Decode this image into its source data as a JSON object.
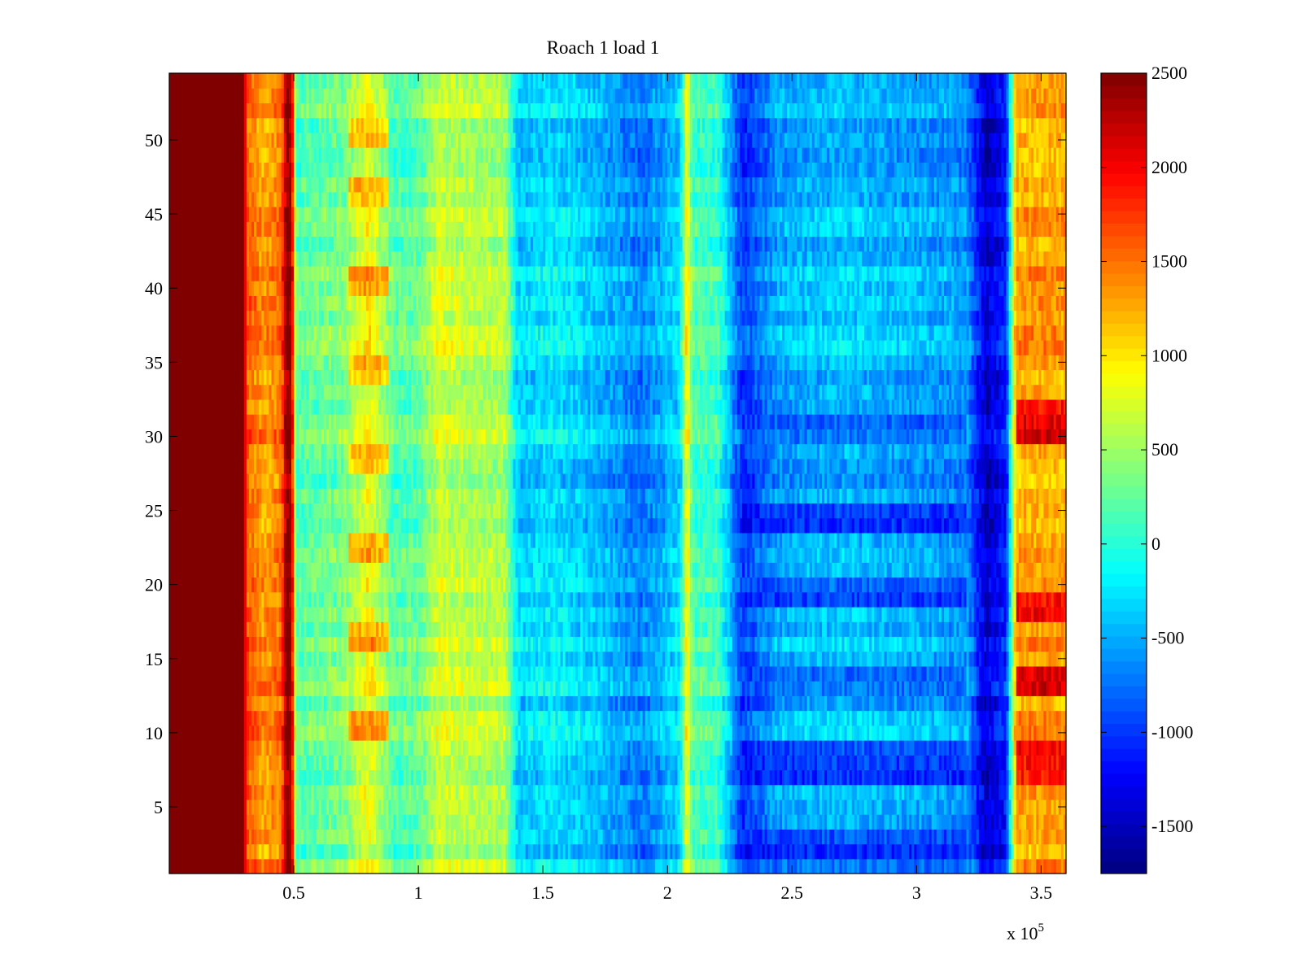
{
  "chart_data": {
    "type": "heatmap",
    "title": "Roach 1 load 1",
    "xlabel": "",
    "ylabel": "",
    "x_exponent_label": "x 10",
    "x_exponent_power": "5",
    "xlim": [
      0,
      3.6
    ],
    "ylim": [
      0.5,
      54.5
    ],
    "rows": 54,
    "x_ticks": [
      {
        "value": 0.5,
        "label": "0.5"
      },
      {
        "value": 1,
        "label": "1"
      },
      {
        "value": 1.5,
        "label": "1.5"
      },
      {
        "value": 2,
        "label": "2"
      },
      {
        "value": 2.5,
        "label": "2.5"
      },
      {
        "value": 3,
        "label": "3"
      },
      {
        "value": 3.5,
        "label": "3.5"
      }
    ],
    "y_ticks": [
      {
        "value": 5,
        "label": "5"
      },
      {
        "value": 10,
        "label": "10"
      },
      {
        "value": 15,
        "label": "15"
      },
      {
        "value": 20,
        "label": "20"
      },
      {
        "value": 25,
        "label": "25"
      },
      {
        "value": 30,
        "label": "30"
      },
      {
        "value": 35,
        "label": "35"
      },
      {
        "value": 40,
        "label": "40"
      },
      {
        "value": 45,
        "label": "45"
      },
      {
        "value": 50,
        "label": "50"
      }
    ],
    "colorbar": {
      "colormap": "jet",
      "range": [
        -1750,
        2500
      ],
      "ticks": [
        {
          "value": 2500,
          "label": "2500"
        },
        {
          "value": 2000,
          "label": "2000"
        },
        {
          "value": 1500,
          "label": "1500"
        },
        {
          "value": 1000,
          "label": "1000"
        },
        {
          "value": 500,
          "label": "500"
        },
        {
          "value": 0,
          "label": "0"
        },
        {
          "value": -500,
          "label": "-500"
        },
        {
          "value": -1000,
          "label": "-1000"
        },
        {
          "value": -1500,
          "label": "-1500"
        }
      ]
    },
    "column_profile": [
      {
        "x": 0.0,
        "value": 2500
      },
      {
        "x": 0.3,
        "value": 2500
      },
      {
        "x": 0.31,
        "value": 1600
      },
      {
        "x": 0.38,
        "value": 1300
      },
      {
        "x": 0.45,
        "value": 1500
      },
      {
        "x": 0.47,
        "value": 2450
      },
      {
        "x": 0.49,
        "value": 2450
      },
      {
        "x": 0.51,
        "value": 200
      },
      {
        "x": 0.7,
        "value": 350
      },
      {
        "x": 0.8,
        "value": 900
      },
      {
        "x": 0.9,
        "value": 200
      },
      {
        "x": 1.0,
        "value": 250
      },
      {
        "x": 1.08,
        "value": 700
      },
      {
        "x": 1.2,
        "value": 600
      },
      {
        "x": 1.35,
        "value": 550
      },
      {
        "x": 1.4,
        "value": -350
      },
      {
        "x": 1.55,
        "value": -250
      },
      {
        "x": 1.7,
        "value": -400
      },
      {
        "x": 1.9,
        "value": -700
      },
      {
        "x": 2.05,
        "value": -300
      },
      {
        "x": 2.08,
        "value": 1000
      },
      {
        "x": 2.1,
        "value": 150
      },
      {
        "x": 2.2,
        "value": 100
      },
      {
        "x": 2.3,
        "value": -1000
      },
      {
        "x": 2.45,
        "value": -500
      },
      {
        "x": 2.7,
        "value": -400
      },
      {
        "x": 3.0,
        "value": -500
      },
      {
        "x": 3.2,
        "value": -600
      },
      {
        "x": 3.28,
        "value": -1450
      },
      {
        "x": 3.36,
        "value": -1100
      },
      {
        "x": 3.4,
        "value": 1300
      },
      {
        "x": 3.6,
        "value": 1300
      }
    ],
    "stripe_features": [
      {
        "name": "orange blob",
        "x_range": [
          0.72,
          0.88
        ],
        "rows": [
          10,
          11,
          16,
          17,
          22,
          23,
          28,
          29,
          34,
          35,
          40,
          41,
          46,
          47,
          50,
          51
        ],
        "value": 1500
      },
      {
        "name": "deep blue band",
        "x_range": [
          2.3,
          3.2
        ],
        "rows": [
          1,
          2,
          3,
          7,
          8,
          9,
          13,
          14,
          19,
          20,
          24,
          25,
          30,
          31
        ],
        "value": -1150
      },
      {
        "name": "dark red right edge",
        "x_range": [
          3.4,
          3.6
        ],
        "rows": [
          7,
          8,
          9,
          13,
          14,
          18,
          19,
          30,
          31,
          32
        ],
        "value": 2350
      }
    ]
  }
}
